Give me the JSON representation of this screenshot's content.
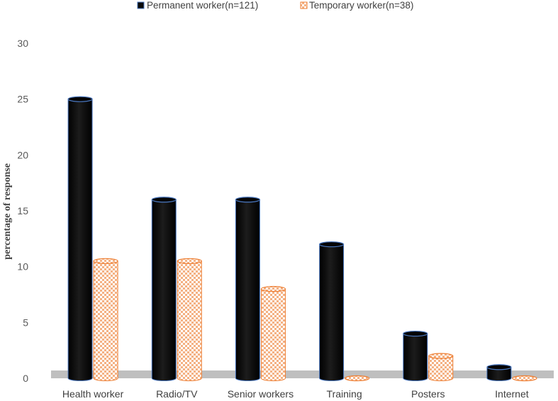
{
  "chart_data": {
    "type": "bar",
    "categories": [
      "Health worker",
      "Radio/TV",
      "Senior workers",
      "Training",
      "Posters",
      "Internet"
    ],
    "series": [
      {
        "name": "Permanent worker(n=121)",
        "values": [
          25,
          16,
          16,
          12,
          4,
          1
        ],
        "color": "#0a0a0a"
      },
      {
        "name": "Temporary worker(n=38)",
        "values": [
          10.5,
          10.5,
          8,
          0,
          2,
          0
        ],
        "color": "#ed7d31"
      }
    ],
    "ylabel": "percentage of response",
    "ylim": [
      0,
      30
    ],
    "yticks": [
      0,
      5,
      10,
      15,
      20,
      25,
      30
    ],
    "legend": "top-center",
    "grid": false
  }
}
